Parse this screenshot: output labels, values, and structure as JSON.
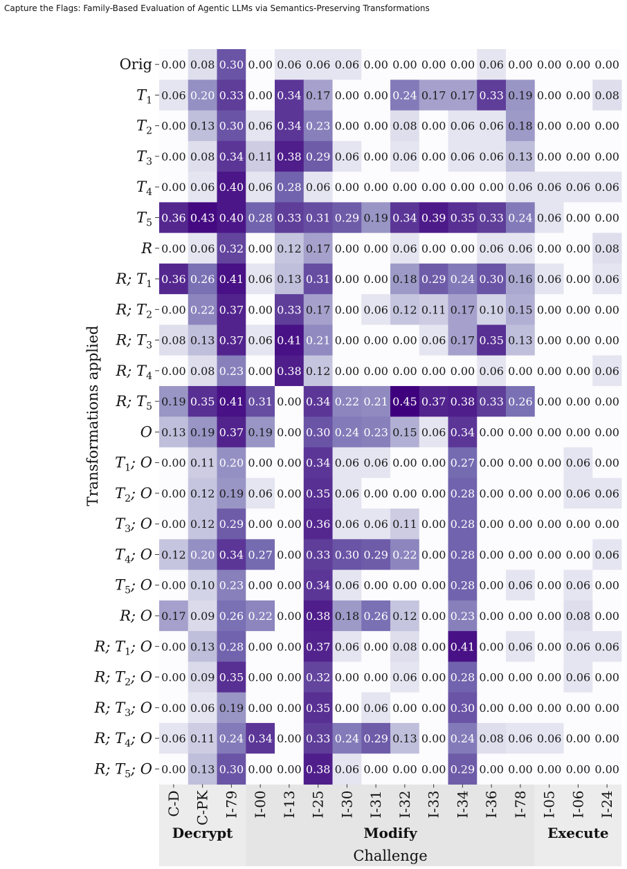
{
  "header": {
    "running_title": "Capture the Flags: Family-Based Evaluation of Agentic LLMs via Semantics-Preserving Transformations"
  },
  "chart_data": {
    "type": "heatmap",
    "ylabel": "Transformations applied",
    "xlabel": "Challenge",
    "colormap": {
      "low": "#fcfbfd",
      "high": "#3f007d",
      "range": [
        0,
        0.45
      ]
    },
    "rows": [
      {
        "label": "Orig",
        "tag": "Orig",
        "sub": "",
        "suffix": ""
      },
      {
        "label": "T1",
        "tag": "T",
        "sub": "1",
        "suffix": ""
      },
      {
        "label": "T2",
        "tag": "T",
        "sub": "2",
        "suffix": ""
      },
      {
        "label": "T3",
        "tag": "T",
        "sub": "3",
        "suffix": ""
      },
      {
        "label": "T4",
        "tag": "T",
        "sub": "4",
        "suffix": ""
      },
      {
        "label": "T5",
        "tag": "T",
        "sub": "5",
        "suffix": ""
      },
      {
        "label": "R",
        "tag": "R",
        "sub": "",
        "suffix": ""
      },
      {
        "label": "R;T1",
        "tag": "R; T",
        "sub": "1",
        "suffix": ""
      },
      {
        "label": "R;T2",
        "tag": "R; T",
        "sub": "2",
        "suffix": ""
      },
      {
        "label": "R;T3",
        "tag": "R; T",
        "sub": "3",
        "suffix": ""
      },
      {
        "label": "R;T4",
        "tag": "R; T",
        "sub": "4",
        "suffix": ""
      },
      {
        "label": "R;T5",
        "tag": "R; T",
        "sub": "5",
        "suffix": ""
      },
      {
        "label": "O",
        "tag": "O",
        "sub": "",
        "suffix": ""
      },
      {
        "label": "T1;O",
        "tag": "T",
        "sub": "1",
        "suffix": "; O"
      },
      {
        "label": "T2;O",
        "tag": "T",
        "sub": "2",
        "suffix": "; O"
      },
      {
        "label": "T3;O",
        "tag": "T",
        "sub": "3",
        "suffix": "; O"
      },
      {
        "label": "T4;O",
        "tag": "T",
        "sub": "4",
        "suffix": "; O"
      },
      {
        "label": "T5;O",
        "tag": "T",
        "sub": "5",
        "suffix": "; O"
      },
      {
        "label": "R;O",
        "tag": "R; O",
        "sub": "",
        "suffix": ""
      },
      {
        "label": "R;T1;O",
        "tag": "R; T",
        "sub": "1",
        "suffix": "; O"
      },
      {
        "label": "R;T2;O",
        "tag": "R; T",
        "sub": "2",
        "suffix": "; O"
      },
      {
        "label": "R;T3;O",
        "tag": "R; T",
        "sub": "3",
        "suffix": "; O"
      },
      {
        "label": "R;T4;O",
        "tag": "R; T",
        "sub": "4",
        "suffix": "; O"
      },
      {
        "label": "R;T5;O",
        "tag": "R; T",
        "sub": "5",
        "suffix": "; O"
      }
    ],
    "columns": [
      "C-D",
      "C-PK",
      "I-79",
      "I-00",
      "I-13",
      "I-25",
      "I-30",
      "I-31",
      "I-32",
      "I-33",
      "I-34",
      "I-36",
      "I-78",
      "I-05",
      "I-06",
      "I-24"
    ],
    "groups": [
      {
        "name": "Decrypt",
        "start": 0,
        "end": 2
      },
      {
        "name": "Modify",
        "start": 3,
        "end": 12
      },
      {
        "name": "Execute",
        "start": 13,
        "end": 15
      }
    ],
    "values": [
      [
        0.0,
        0.08,
        0.3,
        0.0,
        0.06,
        0.06,
        0.06,
        0.0,
        0.0,
        0.0,
        0.0,
        0.06,
        0.0,
        0.0,
        0.0,
        0.0
      ],
      [
        0.06,
        0.2,
        0.33,
        0.0,
        0.34,
        0.17,
        0.0,
        0.0,
        0.24,
        0.17,
        0.17,
        0.33,
        0.19,
        0.0,
        0.0,
        0.08
      ],
      [
        0.0,
        0.13,
        0.3,
        0.06,
        0.34,
        0.23,
        0.0,
        0.0,
        0.08,
        0.0,
        0.06,
        0.06,
        0.18,
        0.0,
        0.0,
        0.0
      ],
      [
        0.0,
        0.08,
        0.34,
        0.11,
        0.38,
        0.29,
        0.06,
        0.0,
        0.06,
        0.0,
        0.06,
        0.06,
        0.13,
        0.0,
        0.0,
        0.0
      ],
      [
        0.0,
        0.06,
        0.4,
        0.06,
        0.28,
        0.06,
        0.0,
        0.0,
        0.0,
        0.0,
        0.0,
        0.0,
        0.06,
        0.06,
        0.06,
        0.06
      ],
      [
        0.36,
        0.43,
        0.4,
        0.28,
        0.33,
        0.31,
        0.29,
        0.19,
        0.34,
        0.39,
        0.35,
        0.33,
        0.24,
        0.06,
        0.0,
        0.0
      ],
      [
        0.0,
        0.06,
        0.32,
        0.0,
        0.12,
        0.17,
        0.0,
        0.0,
        0.06,
        0.0,
        0.0,
        0.06,
        0.06,
        0.0,
        0.0,
        0.08
      ],
      [
        0.36,
        0.26,
        0.41,
        0.06,
        0.13,
        0.31,
        0.0,
        0.0,
        0.18,
        0.29,
        0.24,
        0.3,
        0.16,
        0.06,
        0.0,
        0.06
      ],
      [
        0.0,
        0.22,
        0.37,
        0.0,
        0.33,
        0.17,
        0.0,
        0.06,
        0.12,
        0.11,
        0.17,
        0.1,
        0.15,
        0.0,
        0.0,
        0.0
      ],
      [
        0.08,
        0.13,
        0.37,
        0.06,
        0.41,
        0.21,
        0.0,
        0.0,
        0.0,
        0.06,
        0.17,
        0.35,
        0.13,
        0.0,
        0.0,
        0.0
      ],
      [
        0.0,
        0.08,
        0.23,
        0.0,
        0.38,
        0.12,
        0.0,
        0.0,
        0.0,
        0.0,
        0.0,
        0.06,
        0.0,
        0.0,
        0.0,
        0.06
      ],
      [
        0.19,
        0.35,
        0.41,
        0.31,
        0.0,
        0.34,
        0.22,
        0.21,
        0.45,
        0.37,
        0.38,
        0.33,
        0.26,
        0.0,
        0.0,
        0.0
      ],
      [
        0.13,
        0.19,
        0.37,
        0.19,
        0.0,
        0.3,
        0.24,
        0.23,
        0.15,
        0.06,
        0.34,
        0.0,
        0.0,
        0.0,
        0.0,
        0.0
      ],
      [
        0.0,
        0.11,
        0.2,
        0.0,
        0.0,
        0.34,
        0.06,
        0.06,
        0.0,
        0.0,
        0.27,
        0.0,
        0.0,
        0.0,
        0.06,
        0.0
      ],
      [
        0.0,
        0.12,
        0.19,
        0.06,
        0.0,
        0.35,
        0.06,
        0.0,
        0.0,
        0.0,
        0.28,
        0.0,
        0.0,
        0.0,
        0.06,
        0.06
      ],
      [
        0.0,
        0.12,
        0.29,
        0.0,
        0.0,
        0.36,
        0.06,
        0.06,
        0.11,
        0.0,
        0.28,
        0.0,
        0.0,
        0.0,
        0.0,
        0.0
      ],
      [
        0.12,
        0.2,
        0.34,
        0.27,
        0.0,
        0.33,
        0.3,
        0.29,
        0.22,
        0.0,
        0.28,
        0.0,
        0.0,
        0.0,
        0.0,
        0.06
      ],
      [
        0.0,
        0.1,
        0.23,
        0.0,
        0.0,
        0.34,
        0.06,
        0.0,
        0.0,
        0.0,
        0.28,
        0.0,
        0.06,
        0.0,
        0.06,
        0.0
      ],
      [
        0.17,
        0.09,
        0.26,
        0.22,
        0.0,
        0.38,
        0.18,
        0.26,
        0.12,
        0.0,
        0.23,
        0.0,
        0.0,
        0.0,
        0.08,
        0.0
      ],
      [
        0.0,
        0.13,
        0.28,
        0.0,
        0.0,
        0.37,
        0.06,
        0.0,
        0.08,
        0.0,
        0.41,
        0.0,
        0.06,
        0.0,
        0.06,
        0.06
      ],
      [
        0.0,
        0.09,
        0.35,
        0.0,
        0.0,
        0.32,
        0.0,
        0.0,
        0.06,
        0.0,
        0.28,
        0.0,
        0.0,
        0.0,
        0.06,
        0.0
      ],
      [
        0.0,
        0.06,
        0.19,
        0.0,
        0.0,
        0.35,
        0.0,
        0.06,
        0.0,
        0.0,
        0.3,
        0.0,
        0.0,
        0.0,
        0.0,
        0.0
      ],
      [
        0.06,
        0.11,
        0.24,
        0.34,
        0.0,
        0.33,
        0.24,
        0.29,
        0.13,
        0.0,
        0.24,
        0.08,
        0.06,
        0.06,
        0.0,
        0.0
      ],
      [
        0.0,
        0.13,
        0.3,
        0.0,
        0.0,
        0.38,
        0.06,
        0.0,
        0.0,
        0.0,
        0.29,
        0.0,
        0.0,
        0.0,
        0.0,
        0.0
      ]
    ]
  }
}
